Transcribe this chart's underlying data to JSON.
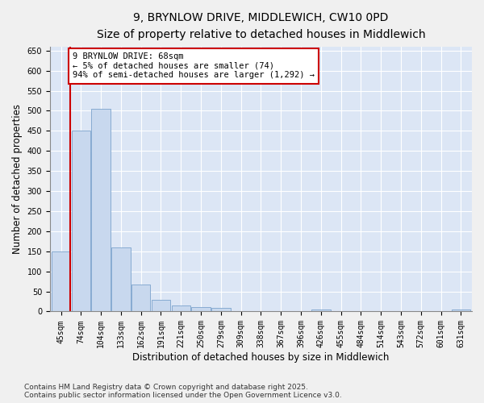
{
  "title": "9, BRYNLOW DRIVE, MIDDLEWICH, CW10 0PD",
  "subtitle": "Size of property relative to detached houses in Middlewich",
  "xlabel": "Distribution of detached houses by size in Middlewich",
  "ylabel": "Number of detached properties",
  "categories": [
    "45sqm",
    "74sqm",
    "104sqm",
    "133sqm",
    "162sqm",
    "191sqm",
    "221sqm",
    "250sqm",
    "279sqm",
    "309sqm",
    "338sqm",
    "367sqm",
    "396sqm",
    "426sqm",
    "455sqm",
    "484sqm",
    "514sqm",
    "543sqm",
    "572sqm",
    "601sqm",
    "631sqm"
  ],
  "values": [
    150,
    450,
    505,
    160,
    68,
    30,
    14,
    10,
    8,
    0,
    0,
    0,
    0,
    5,
    0,
    0,
    0,
    0,
    0,
    0,
    5
  ],
  "bar_color": "#c8d8ee",
  "bar_edge_color": "#7ba3cc",
  "vline_color": "#cc0000",
  "vline_x": 0.45,
  "annotation_text": "9 BRYNLOW DRIVE: 68sqm\n← 5% of detached houses are smaller (74)\n94% of semi-detached houses are larger (1,292) →",
  "annotation_box_facecolor": "#ffffff",
  "annotation_box_edgecolor": "#cc0000",
  "footer_text": "Contains HM Land Registry data © Crown copyright and database right 2025.\nContains public sector information licensed under the Open Government Licence v3.0.",
  "ylim": [
    0,
    660
  ],
  "yticks": [
    0,
    50,
    100,
    150,
    200,
    250,
    300,
    350,
    400,
    450,
    500,
    550,
    600,
    650
  ],
  "plot_bg_color": "#dce6f5",
  "fig_bg_color": "#f0f0f0",
  "title_fontsize": 10,
  "subtitle_fontsize": 9,
  "tick_fontsize": 7,
  "label_fontsize": 8.5,
  "footer_fontsize": 6.5,
  "annotation_fontsize": 7.5
}
